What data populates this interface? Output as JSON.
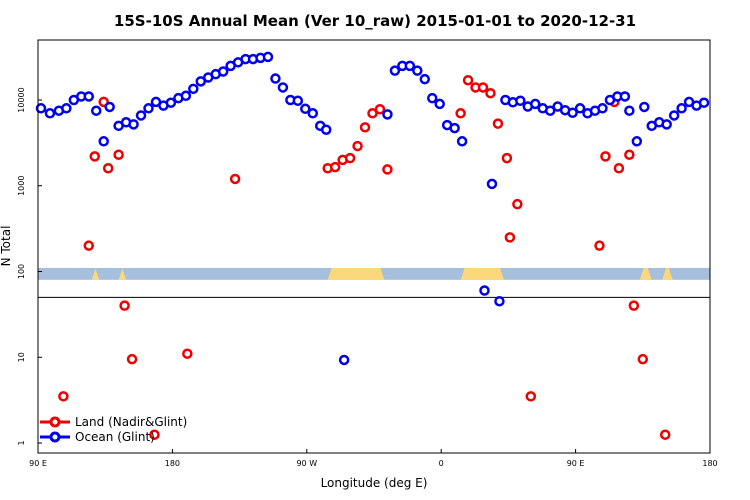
{
  "chart_data": {
    "type": "scatter",
    "title": "15S-10S Annual Mean (Ver 10_raw)   2015-01-01 to 2020-12-31",
    "xlabel": "Longitude (deg E)",
    "ylabel": "N Total",
    "x_ticks": [
      {
        "value": 0,
        "label": "90 E"
      },
      {
        "value": 90,
        "label": "180"
      },
      {
        "value": 180,
        "label": "90 W"
      },
      {
        "value": 270,
        "label": "0"
      },
      {
        "value": 360,
        "label": "90 E"
      },
      {
        "value": 450,
        "label": "180"
      }
    ],
    "xlim": [
      0,
      450
    ],
    "y_scale": "log",
    "ylim": [
      0.8,
      30000
    ],
    "y_ticks": [
      {
        "value": 1,
        "label": "1"
      },
      {
        "value": 10,
        "label": "10"
      },
      {
        "value": 100,
        "label": "100"
      },
      {
        "value": 1000,
        "label": "1000"
      },
      {
        "value": 10000,
        "label": "10000"
      }
    ],
    "reference_line_y": 50,
    "landmask_band": {
      "y_range": [
        80,
        110
      ],
      "ocean_color": "#a5bfdc",
      "land_color": "#fdd87a",
      "land_segments": [
        [
          36,
          41
        ],
        [
          54,
          59
        ],
        [
          194,
          232
        ],
        [
          283,
          312
        ],
        [
          403,
          411
        ],
        [
          418,
          425
        ]
      ]
    },
    "legend_position": "bottom-left",
    "series": [
      {
        "name": "Land (Nadir&Glint)",
        "color": "#ee0000",
        "points": [
          [
            17,
            3.5
          ],
          [
            34,
            200
          ],
          [
            38,
            2200
          ],
          [
            44,
            9500
          ],
          [
            47,
            1600
          ],
          [
            54,
            2300
          ],
          [
            58,
            40
          ],
          [
            63,
            9.5
          ],
          [
            78,
            1.25
          ],
          [
            100,
            11
          ],
          [
            132,
            1200
          ],
          [
            194,
            1600
          ],
          [
            199,
            1650
          ],
          [
            204,
            2000
          ],
          [
            209,
            2100
          ],
          [
            214,
            2900
          ],
          [
            219,
            4800
          ],
          [
            224,
            7000
          ],
          [
            229,
            7800
          ],
          [
            234,
            1550
          ],
          [
            283,
            7000
          ],
          [
            288,
            17000
          ],
          [
            293,
            14000
          ],
          [
            298,
            14000
          ],
          [
            303,
            12000
          ],
          [
            308,
            5300
          ],
          [
            314,
            2100
          ],
          [
            316,
            250
          ],
          [
            321,
            610
          ],
          [
            330,
            3.5
          ],
          [
            376,
            200
          ],
          [
            380,
            2200
          ],
          [
            386,
            9500
          ],
          [
            389,
            1600
          ],
          [
            396,
            2300
          ],
          [
            399,
            40
          ],
          [
            405,
            9.5
          ],
          [
            420,
            1.25
          ]
        ]
      },
      {
        "name": "Ocean (Glint)",
        "color": "#0000ee",
        "points": [
          [
            2,
            8000
          ],
          [
            8,
            7000
          ],
          [
            14,
            7500
          ],
          [
            19,
            8000
          ],
          [
            24,
            10000
          ],
          [
            29,
            11000
          ],
          [
            34,
            11000
          ],
          [
            39,
            7500
          ],
          [
            44,
            3300
          ],
          [
            48,
            8300
          ],
          [
            54,
            5000
          ],
          [
            59,
            5500
          ],
          [
            64,
            5200
          ],
          [
            69,
            6600
          ],
          [
            74,
            8000
          ],
          [
            79,
            9500
          ],
          [
            84,
            8600
          ],
          [
            89,
            9300
          ],
          [
            94,
            10500
          ],
          [
            99,
            11200
          ],
          [
            104,
            13500
          ],
          [
            109,
            16500
          ],
          [
            114,
            18300
          ],
          [
            119,
            20000
          ],
          [
            124,
            21500
          ],
          [
            129,
            25000
          ],
          [
            134,
            27500
          ],
          [
            139,
            30000
          ],
          [
            144,
            30000
          ],
          [
            149,
            31000
          ],
          [
            154,
            31800
          ],
          [
            159,
            17800
          ],
          [
            164,
            14000
          ],
          [
            169,
            10000
          ],
          [
            174,
            9800
          ],
          [
            179,
            7900
          ],
          [
            184,
            7000
          ],
          [
            189,
            5000
          ],
          [
            193,
            4500
          ],
          [
            205,
            9.3
          ],
          [
            234,
            6800
          ],
          [
            239,
            22000
          ],
          [
            244,
            25000
          ],
          [
            249,
            25000
          ],
          [
            254,
            22000
          ],
          [
            259,
            17500
          ],
          [
            264,
            10500
          ],
          [
            269,
            9000
          ],
          [
            274,
            5100
          ],
          [
            279,
            4700
          ],
          [
            284,
            3300
          ],
          [
            299,
            60
          ],
          [
            309,
            45
          ],
          [
            304,
            1050
          ],
          [
            313,
            10000
          ],
          [
            318,
            9400
          ],
          [
            323,
            9800
          ],
          [
            328,
            8400
          ],
          [
            333,
            9000
          ],
          [
            338,
            8000
          ],
          [
            343,
            7500
          ],
          [
            348,
            8400
          ],
          [
            353,
            7600
          ],
          [
            358,
            7100
          ],
          [
            363,
            8000
          ],
          [
            368,
            7000
          ],
          [
            373,
            7500
          ],
          [
            378,
            8000
          ],
          [
            383,
            10000
          ],
          [
            388,
            11000
          ],
          [
            393,
            11000
          ],
          [
            396,
            7500
          ],
          [
            401,
            3300
          ],
          [
            406,
            8300
          ],
          [
            411,
            5000
          ],
          [
            416,
            5500
          ],
          [
            421,
            5200
          ],
          [
            426,
            6600
          ],
          [
            431,
            8000
          ],
          [
            436,
            9500
          ],
          [
            441,
            8600
          ],
          [
            446,
            9300
          ]
        ]
      }
    ]
  }
}
